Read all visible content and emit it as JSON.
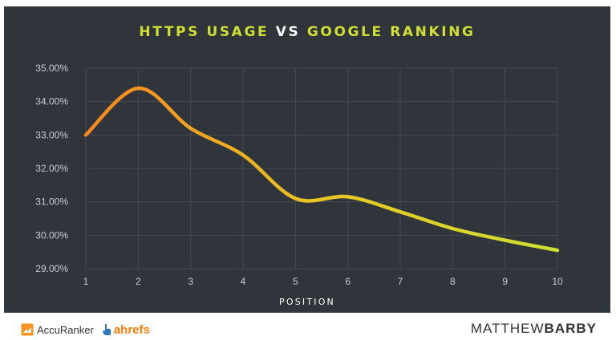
{
  "chart_data": {
    "type": "line",
    "title_parts": [
      "HTTPS USAGE",
      " VS ",
      "GOOGLE RANKING"
    ],
    "xlabel": "POSITION",
    "ylabel": "",
    "x": [
      1,
      2,
      3,
      4,
      5,
      6,
      7,
      8,
      9,
      10
    ],
    "series": [
      {
        "values": [
          33.0,
          34.4,
          33.2,
          32.4,
          31.1,
          31.15,
          30.7,
          30.2,
          29.85,
          29.55
        ]
      }
    ],
    "ylim": [
      29.0,
      35.0
    ],
    "yticks": [
      "29.00%",
      "30.00%",
      "31.00%",
      "32.00%",
      "33.00%",
      "34.00%",
      "35.00%"
    ],
    "xticks": [
      "1",
      "2",
      "3",
      "4",
      "5",
      "6",
      "7",
      "8",
      "9",
      "10"
    ],
    "grid": true,
    "line_gradient": [
      "#f7851e",
      "#e9c622",
      "#cfe033"
    ],
    "background": "#2f353a"
  },
  "footer": {
    "accuranker": "AccuRanker",
    "ahrefs": "ahrefs",
    "brand_light": "MATTHEW",
    "brand_bold": "BARBY"
  }
}
